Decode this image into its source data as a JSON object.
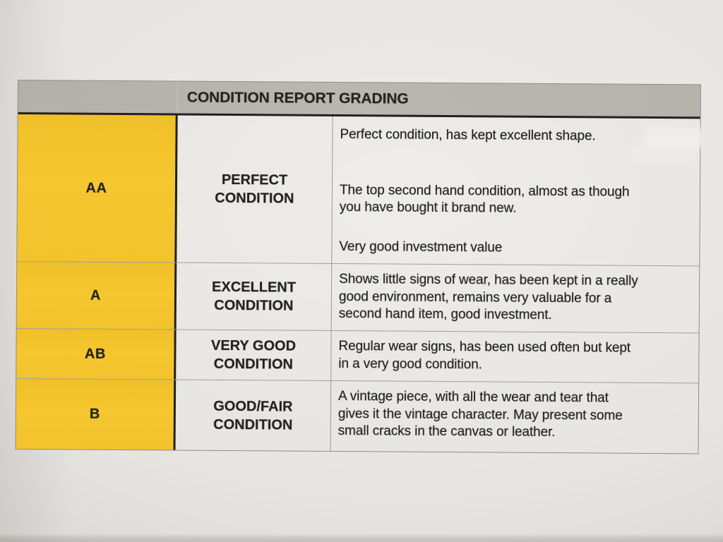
{
  "colors": {
    "paper": "#e7e5e2",
    "ink": "#242220",
    "header_gray": "#bab6b0",
    "grade_yellow": "#f5c62e",
    "border_dark": "#23211e",
    "border_mid": "#8f8c86",
    "border_light": "#cac7c1"
  },
  "table": {
    "title": "CONDITION REPORT GRADING",
    "rows": [
      {
        "grade": "AA",
        "condition_name": "PERFECT CONDITION",
        "condition_lines": [
          "PERFECT",
          "CONDITION"
        ],
        "paragraphs": [
          [
            "Perfect condition, has kept excellent shape."
          ],
          [
            "The top second hand condition, almost as though",
            "you have bought it brand new."
          ],
          [
            "Very good investment value"
          ]
        ]
      },
      {
        "grade": "A",
        "condition_name": "EXCELLENT CONDITION",
        "condition_lines": [
          "EXCELLENT",
          "CONDITION"
        ],
        "paragraphs": [
          [
            "Shows little signs of wear, has been kept in a really",
            "good environment, remains very valuable for a",
            "second hand item, good investment."
          ]
        ]
      },
      {
        "grade": "AB",
        "condition_name": "VERY GOOD CONDITION",
        "condition_lines": [
          "VERY GOOD",
          "CONDITION"
        ],
        "paragraphs": [
          [
            "Regular wear signs, has been used often but kept",
            "in a very good condition."
          ]
        ]
      },
      {
        "grade": "B",
        "condition_name": "GOOD/FAIR CONDITION",
        "condition_lines": [
          "GOOD/FAIR",
          "CONDITION"
        ],
        "paragraphs": [
          [
            "A vintage piece, with all the wear and tear that",
            "gives it the vintage character. May present some",
            "small cracks in the canvas or leather."
          ]
        ]
      }
    ]
  }
}
